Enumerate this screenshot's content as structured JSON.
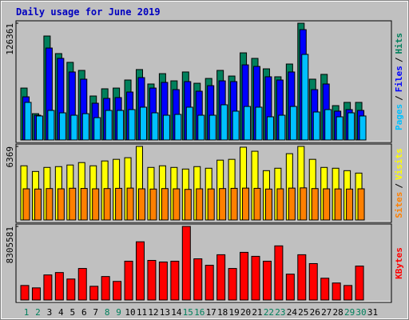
{
  "chart_data": {
    "type": "bar",
    "title": "Daily usage for June 2019",
    "categories": [
      "1",
      "2",
      "3",
      "4",
      "5",
      "6",
      "7",
      "8",
      "9",
      "10",
      "11",
      "12",
      "13",
      "14",
      "15",
      "16",
      "17",
      "18",
      "19",
      "20",
      "21",
      "22",
      "23",
      "24",
      "25",
      "26",
      "27",
      "28",
      "29",
      "30",
      "31"
    ],
    "category_colors": [
      "#00805c",
      "#00805c",
      "#000000",
      "#000000",
      "#000000",
      "#000000",
      "#000000",
      "#00805c",
      "#00805c",
      "#000000",
      "#000000",
      "#000000",
      "#000000",
      "#000000",
      "#00805c",
      "#00805c",
      "#000000",
      "#000000",
      "#000000",
      "#000000",
      "#000000",
      "#00805c",
      "#00805c",
      "#000000",
      "#000000",
      "#000000",
      "#000000",
      "#000000",
      "#00805c",
      "#00805c",
      "#000000"
    ],
    "legend_separator": "/",
    "panels": [
      {
        "ylim": [
          0,
          126361
        ],
        "yticks": [
          126361
        ],
        "series": [
          {
            "name": "Hits",
            "color": "#00805c",
            "values": [
              56200,
              28500,
              112500,
              93500,
              84000,
              75300,
              47600,
              55400,
              56200,
              64900,
              76200,
              60600,
              71800,
              64000,
              73600,
              61400,
              66600,
              75300,
              69200,
              94300,
              88300,
              77000,
              68400,
              82200,
              126361,
              65800,
              71000,
              37200,
              40700,
              40700,
              0
            ]
          },
          {
            "name": "Files",
            "color": "#0000ff",
            "values": [
              46700,
              26800,
              99500,
              88300,
              73600,
              65800,
              39800,
              45000,
              45900,
              51900,
              67500,
              56200,
              62300,
              54500,
              63200,
              52800,
              58800,
              64000,
              63200,
              81300,
              79600,
              68400,
              64900,
              73600,
              119400,
              54500,
              60600,
              31200,
              32900,
              32000,
              0
            ]
          },
          {
            "name": "Pages",
            "color": "#00c0ff",
            "values": [
              40700,
              26000,
              32000,
              29400,
              26800,
              28500,
              24200,
              32000,
              32000,
              32900,
              35500,
              29400,
              26800,
              27700,
              35500,
              26800,
              26800,
              38100,
              31200,
              36300,
              35500,
              25100,
              26800,
              36300,
              92600,
              30300,
              32900,
              25100,
              29400,
              26000,
              0
            ]
          }
        ]
      },
      {
        "ylim": [
          0,
          6369
        ],
        "yticks": [
          6369
        ],
        "series": [
          {
            "name": "Visits",
            "color": "#ffff00",
            "values": [
              4690,
              4200,
              4550,
              4620,
              4760,
              4970,
              4690,
              5110,
              5250,
              5390,
              6369,
              4550,
              4690,
              4550,
              4410,
              4620,
              4480,
              5180,
              5250,
              6300,
              5950,
              4270,
              4480,
              5740,
              6369,
              5250,
              4550,
              4480,
              4270,
              4060,
              0
            ]
          },
          {
            "name": "Sites",
            "color": "#ff8000",
            "values": [
              2700,
              2680,
              2720,
              2700,
              2750,
              2730,
              2700,
              2720,
              2740,
              2760,
              2700,
              2680,
              2720,
              2700,
              2650,
              2700,
              2690,
              2720,
              2740,
              2760,
              2740,
              2680,
              2700,
              2760,
              2780,
              2720,
              2700,
              2690,
              2680,
              2700,
              0
            ]
          }
        ]
      },
      {
        "ylim": [
          0,
          8305581
        ],
        "yticks": [
          8305581
        ],
        "series": [
          {
            "name": "KBytes",
            "color": "#ff0000",
            "values": [
              1640000,
              1370000,
              2830000,
              3100000,
              2370000,
              3560000,
              1550000,
              2650000,
              2100000,
              4380000,
              6570000,
              4470000,
              4290000,
              4380000,
              8305581,
              4650000,
              3920000,
              5110000,
              3560000,
              5380000,
              4930000,
              4380000,
              6110000,
              2920000,
              5110000,
              4110000,
              2460000,
              1920000,
              1640000,
              3830000,
              0
            ]
          }
        ]
      }
    ]
  }
}
